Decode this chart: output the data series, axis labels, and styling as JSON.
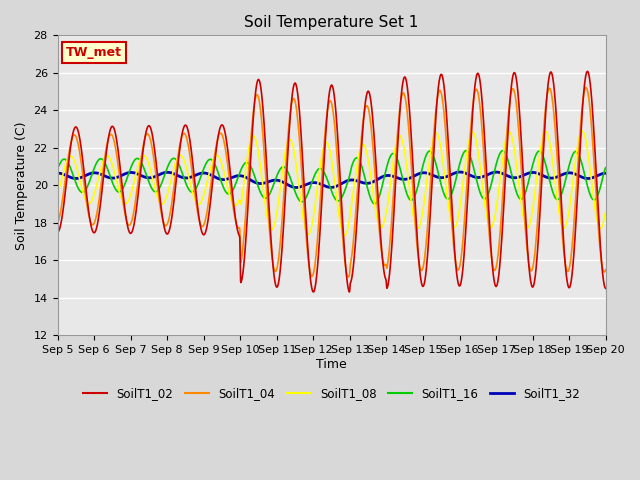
{
  "title": "Soil Temperature Set 1",
  "xlabel": "Time",
  "ylabel": "Soil Temperature (C)",
  "ylim": [
    12,
    28
  ],
  "yticks": [
    12,
    14,
    16,
    18,
    20,
    22,
    24,
    26,
    28
  ],
  "bg_color": "#e8e8e8",
  "plot_bg": "#e8e8e8",
  "annotation_text": "TW_met",
  "annotation_bg": "#ffffcc",
  "annotation_border": "#cc0000",
  "series": {
    "SoilT1_02": {
      "color": "#cc0000",
      "lw": 1.2
    },
    "SoilT1_04": {
      "color": "#ff8800",
      "lw": 1.2
    },
    "SoilT1_08": {
      "color": "#ffff00",
      "lw": 1.2
    },
    "SoilT1_16": {
      "color": "#00cc00",
      "lw": 1.2
    },
    "SoilT1_32": {
      "color": "#0000bb",
      "lw": 2.0
    }
  },
  "xtick_labels": [
    "Sep 5",
    "Sep 6",
    "Sep 7",
    "Sep 8",
    "Sep 9",
    "Sep 10",
    "Sep 11",
    "Sep 12",
    "Sep 13",
    "Sep 14",
    "Sep 15",
    "Sep 16",
    "Sep 17",
    "Sep 18",
    "Sep 19",
    "Sep 20"
  ],
  "n_days": 15,
  "pts_per_day": 144
}
